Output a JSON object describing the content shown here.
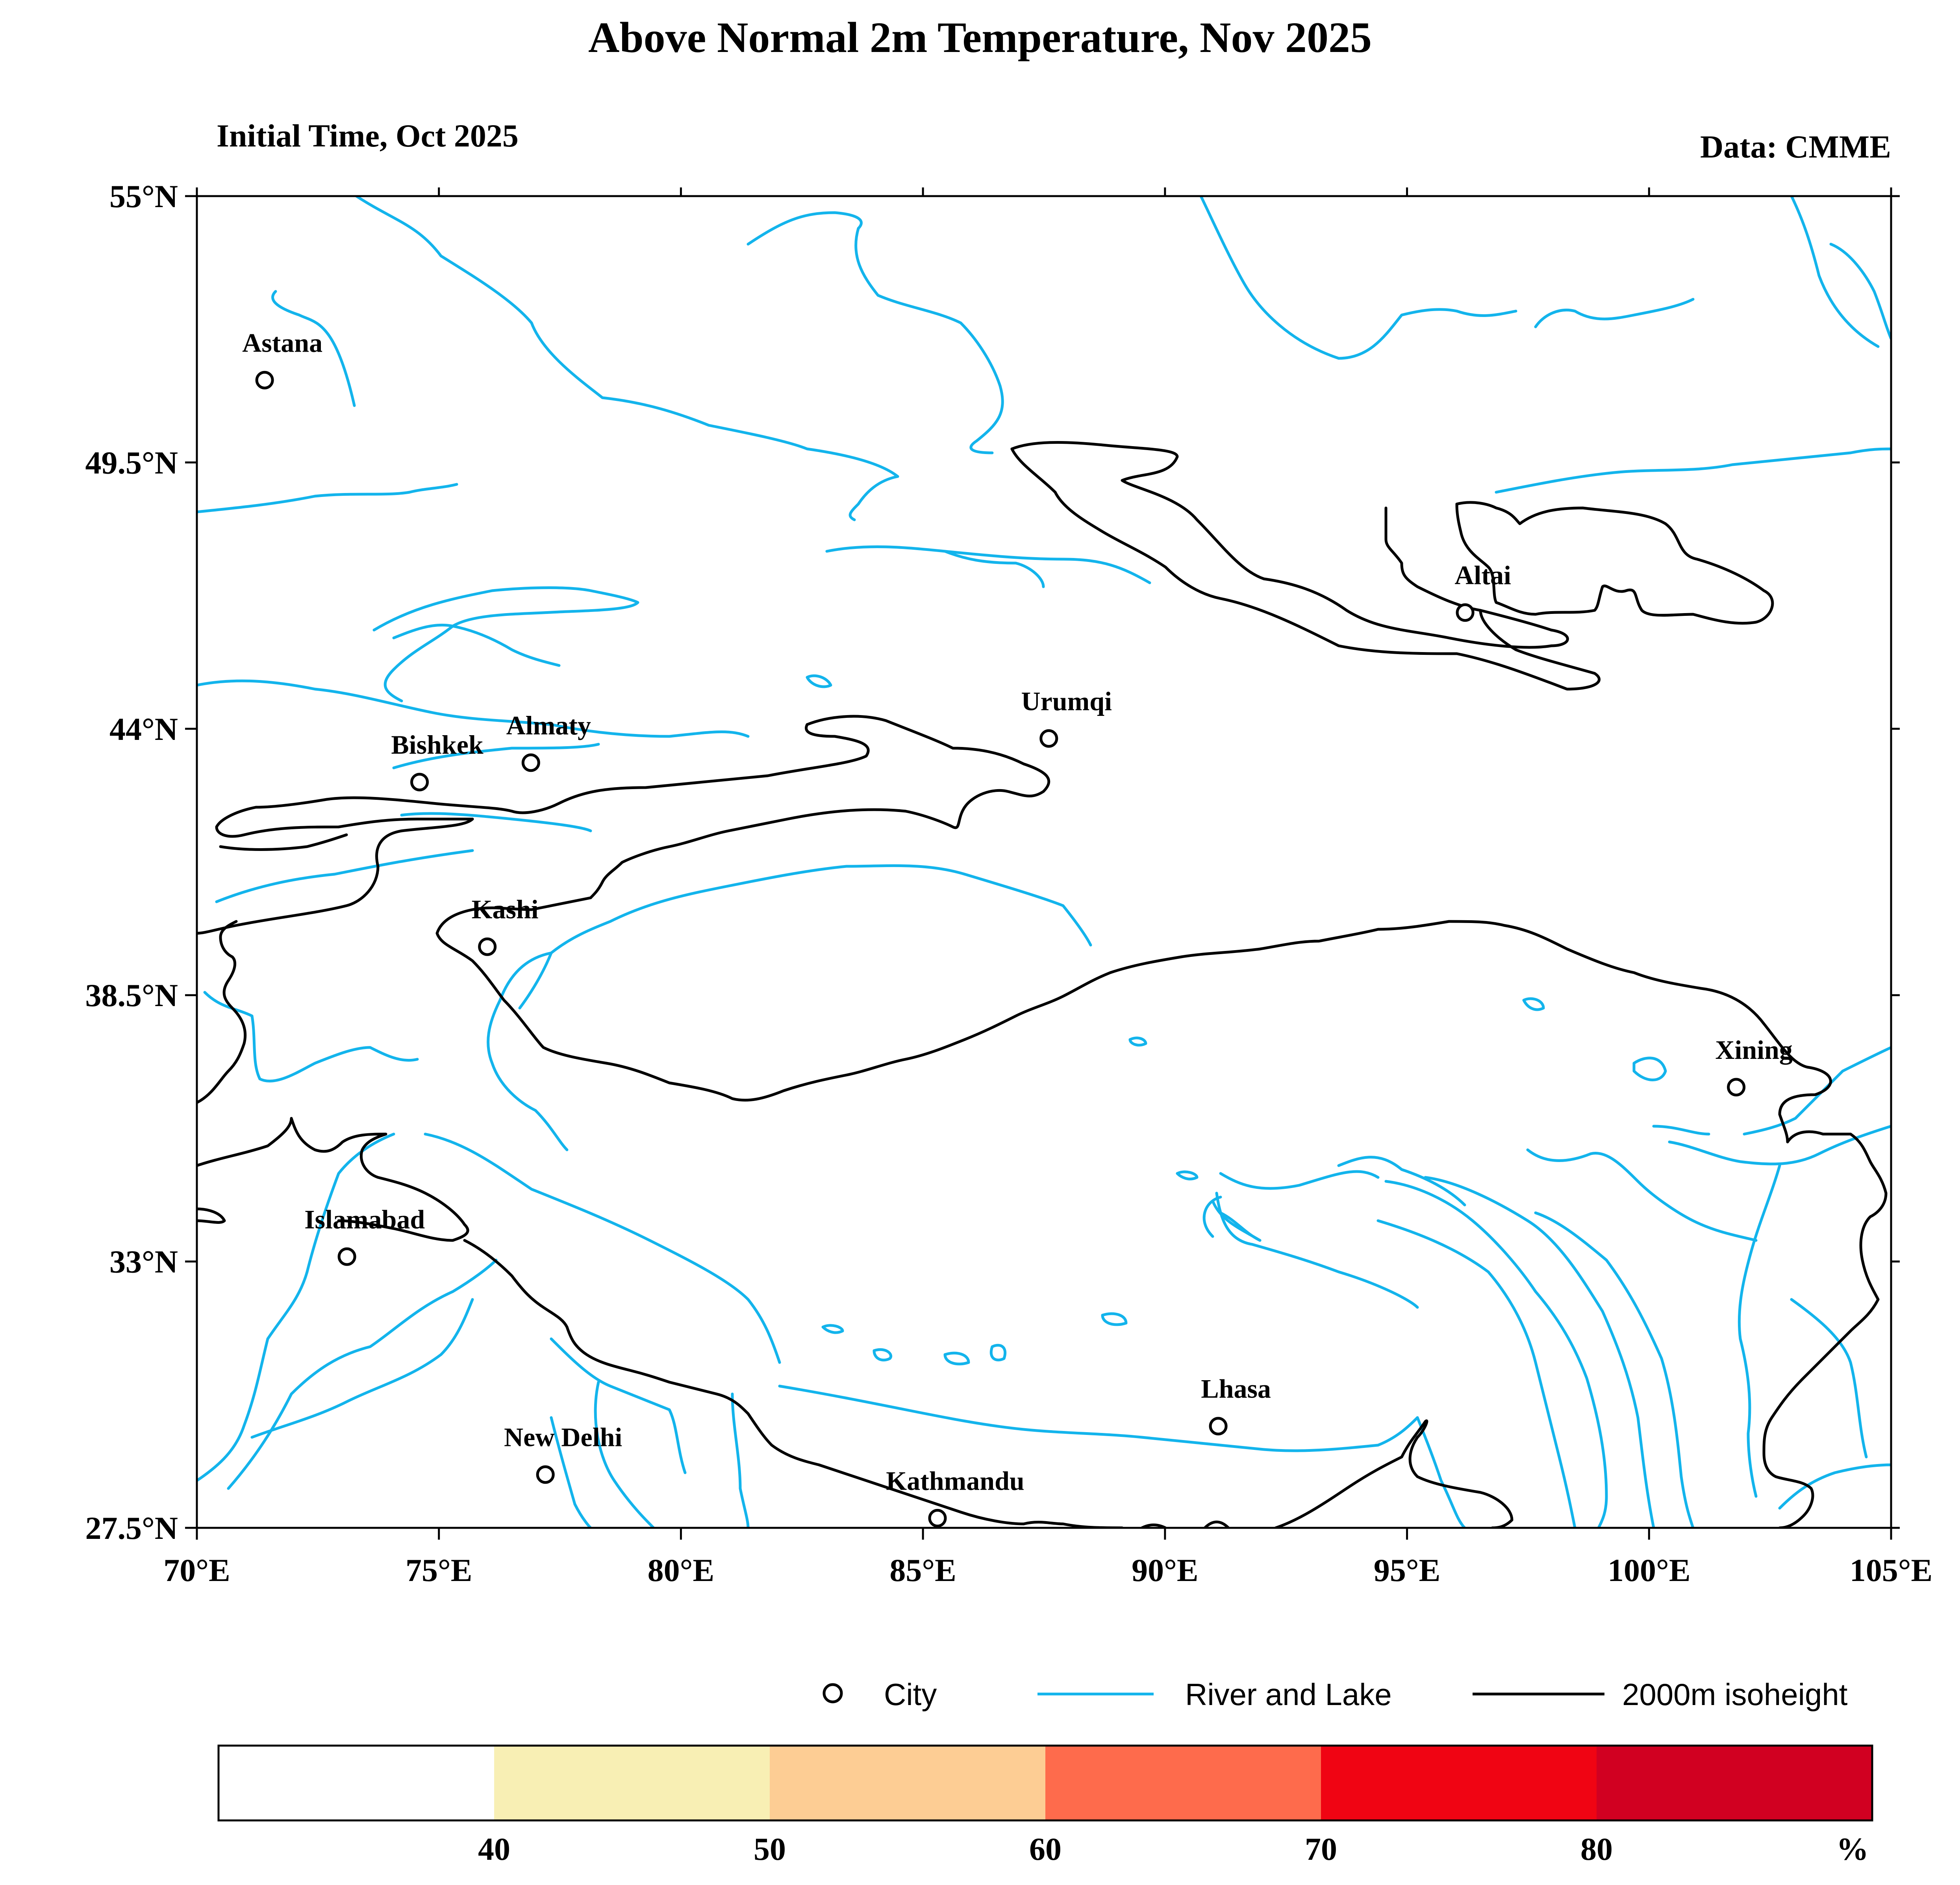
{
  "title": "Above Normal 2m Temperature, Nov 2025",
  "subtitle_left": "Initial Time, Oct 2025",
  "subtitle_right": "Data: CMME",
  "map": {
    "lon_range": [
      70,
      105
    ],
    "lat_range": [
      27.5,
      55
    ],
    "lat_ticks": [
      {
        "value": 55,
        "label": "55°N"
      },
      {
        "value": 49.5,
        "label": "49.5°N"
      },
      {
        "value": 44,
        "label": "44°N"
      },
      {
        "value": 38.5,
        "label": "38.5°N"
      },
      {
        "value": 33,
        "label": "33°N"
      },
      {
        "value": 27.5,
        "label": "27.5°N"
      }
    ],
    "lon_ticks": [
      {
        "value": 70,
        "label": "70°E"
      },
      {
        "value": 75,
        "label": "75°E"
      },
      {
        "value": 80,
        "label": "80°E"
      },
      {
        "value": 85,
        "label": "85°E"
      },
      {
        "value": 90,
        "label": "90°E"
      },
      {
        "value": 95,
        "label": "95°E"
      },
      {
        "value": 100,
        "label": "100°E"
      },
      {
        "value": 105,
        "label": "105°E"
      }
    ],
    "colors": {
      "river": "#13b4ec",
      "isoheight": "#000000"
    },
    "cities": [
      {
        "name": "Astana",
        "lon": 71.4,
        "lat": 51.2
      },
      {
        "name": "Almaty",
        "lon": 76.9,
        "lat": 43.3
      },
      {
        "name": "Bishkek",
        "lon": 74.6,
        "lat": 42.9
      },
      {
        "name": "Urumqi",
        "lon": 87.6,
        "lat": 43.8
      },
      {
        "name": "Altai",
        "lon": 96.2,
        "lat": 46.4
      },
      {
        "name": "Kashi",
        "lon": 76.0,
        "lat": 39.5
      },
      {
        "name": "Xining",
        "lon": 101.8,
        "lat": 36.6
      },
      {
        "name": "Islamabad",
        "lon": 73.1,
        "lat": 33.1
      },
      {
        "name": "Lhasa",
        "lon": 91.1,
        "lat": 29.6
      },
      {
        "name": "New Delhi",
        "lon": 77.2,
        "lat": 28.6
      },
      {
        "name": "Kathmandu",
        "lon": 85.3,
        "lat": 27.7
      }
    ]
  },
  "legend": {
    "city": "City",
    "river": "River and Lake",
    "isoheight": "2000m isoheight"
  },
  "colorbar": {
    "colors": [
      "#ffffff",
      "#f8efb4",
      "#fdcd94",
      "#fe6b4c",
      "#f00413",
      "#d10021"
    ],
    "labels": [
      "40",
      "50",
      "60",
      "70",
      "80"
    ],
    "unit": "%"
  }
}
